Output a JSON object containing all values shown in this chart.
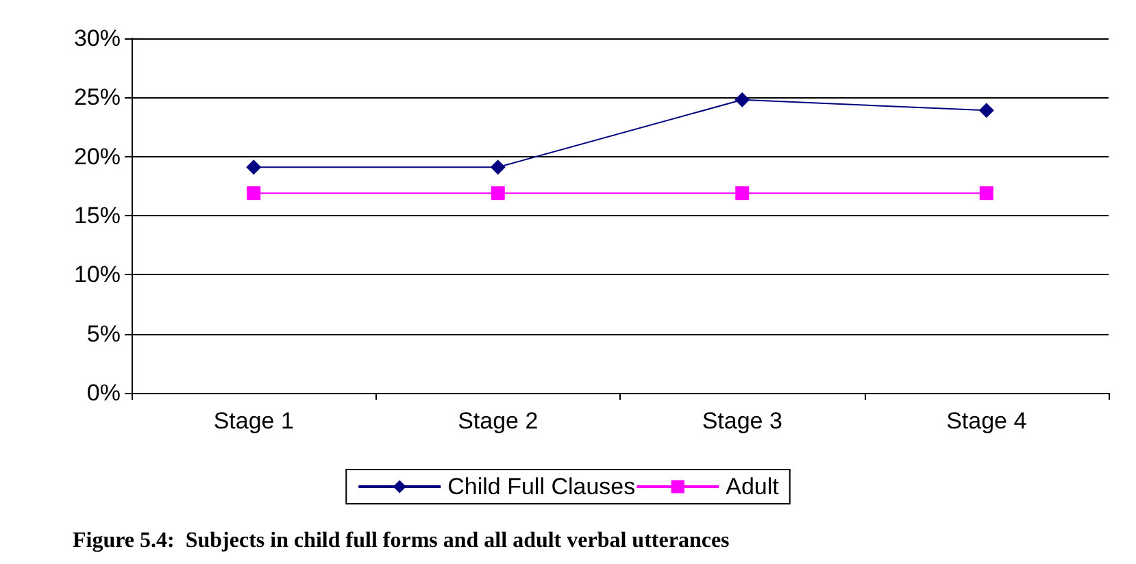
{
  "chart_data": {
    "type": "line",
    "title": "Figure 5.4:  Subjects in child full forms and all adult verbal utterances",
    "categories": [
      "Stage 1",
      "Stage 2",
      "Stage 3",
      "Stage 4"
    ],
    "series": [
      {
        "name": "Child Full Clauses",
        "color": "#000080",
        "marker": "diamond",
        "values": [
          19.1,
          19.1,
          24.8,
          23.9
        ]
      },
      {
        "name": "Adult",
        "color": "#ff00ff",
        "marker": "square",
        "values": [
          16.9,
          16.9,
          16.9,
          16.9
        ]
      }
    ],
    "ylim": [
      0,
      30
    ],
    "yticks": [
      {
        "value": 0,
        "label": "0%"
      },
      {
        "value": 5,
        "label": "5%"
      },
      {
        "value": 10,
        "label": "10%"
      },
      {
        "value": 15,
        "label": "15%"
      },
      {
        "value": 20,
        "label": "20%"
      },
      {
        "value": 25,
        "label": "25%"
      },
      {
        "value": 30,
        "label": "30%"
      }
    ],
    "grid": "y",
    "legend": "bottom",
    "line_style": "solid"
  }
}
